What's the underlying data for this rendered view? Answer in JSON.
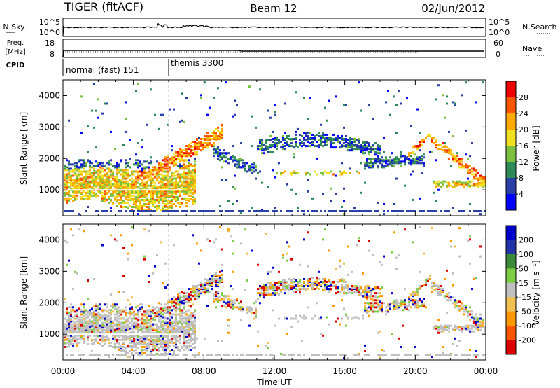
{
  "header": {
    "radar": "TIGER (fitACF)",
    "beam": "Beam 12",
    "date": "02/Jun/2012"
  },
  "sky_panel": {
    "left_label": "N.Sky",
    "left_ticks": [
      "10^5",
      "10^0"
    ],
    "right_label": "N.Search",
    "right_ticks": [
      "10^5",
      "10^0"
    ]
  },
  "freq_panel": {
    "left_label_1": "Freq.",
    "left_label_2": "[MHz]",
    "left_ticks": [
      "18",
      "8"
    ],
    "right_label": "Nave",
    "right_ticks": [
      "60",
      "0"
    ]
  },
  "cpid": {
    "label": "CPID",
    "modes": [
      {
        "name": "normal (fast) 151",
        "start_hour": 0
      },
      {
        "name": "themis 3300",
        "start_hour": 6
      }
    ]
  },
  "x_axis": {
    "label": "Time UT",
    "ticks": [
      "00:00",
      "04:00",
      "08:00",
      "12:00",
      "16:00",
      "20:00",
      "00:00"
    ],
    "range_hours": [
      0,
      24
    ]
  },
  "chart_data": [
    {
      "type": "heatmap",
      "name": "power",
      "ylabel": "Slant Range [km]",
      "yticks": [
        "1000",
        "2000",
        "3000",
        "4000"
      ],
      "ylim": [
        180,
        4500
      ],
      "colorbar": {
        "label": "Power [dB]",
        "ticks": [
          "4",
          "8",
          "12",
          "16",
          "20",
          "24",
          "28"
        ],
        "range": [
          0,
          30
        ],
        "colors": [
          "#0000ff",
          "#2a3fa8",
          "#2e8b57",
          "#7cc040",
          "#f0e020",
          "#ffaa00",
          "#ff5500",
          "#ee0000"
        ]
      }
    },
    {
      "type": "heatmap",
      "name": "velocity",
      "ylabel": "Slant Range [km]",
      "yticks": [
        "1000",
        "2000",
        "3000",
        "4000"
      ],
      "ylim": [
        180,
        4500
      ],
      "colorbar": {
        "label": "Velocity [m s⁻¹]",
        "ticks": [
          "200",
          "100",
          "50",
          "15",
          "-15",
          "-50",
          "-100",
          "-200"
        ],
        "range": [
          -250,
          250
        ],
        "colors": [
          "#0000cc",
          "#2233aa",
          "#3a8a3a",
          "#7ccc44",
          "#c0c0c0",
          "#f0c050",
          "#ff9900",
          "#ff5500",
          "#dd0000"
        ]
      }
    }
  ]
}
